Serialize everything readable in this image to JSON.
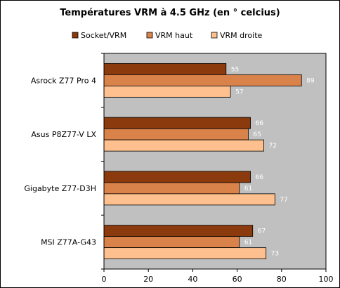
{
  "chart_data": {
    "type": "bar",
    "orientation": "horizontal",
    "title": "Températures VRM à 4.5 GHz (en ° celcius)",
    "categories": [
      "Asrock Z77 Pro 4",
      "Asus P8Z77-V LX",
      "Gigabyte Z77-D3H",
      "MSI Z77A-G43"
    ],
    "series": [
      {
        "name": "Socket/VRM",
        "values": [
          55,
          66,
          66,
          67
        ],
        "color": "#8B3A0E"
      },
      {
        "name": "VRM haut",
        "values": [
          89,
          65,
          61,
          61
        ],
        "color": "#D9824A"
      },
      {
        "name": "VRM droite",
        "values": [
          57,
          72,
          77,
          73
        ],
        "color": "#FDC08E"
      }
    ],
    "xlim": [
      0,
      100
    ],
    "xticks": [
      0,
      20,
      40,
      60,
      80,
      100
    ],
    "grid": false,
    "legend_position": "top",
    "plot_background": "#C0C0C0",
    "bar_border": "#000000",
    "value_label_color": "#FFFFFF"
  }
}
